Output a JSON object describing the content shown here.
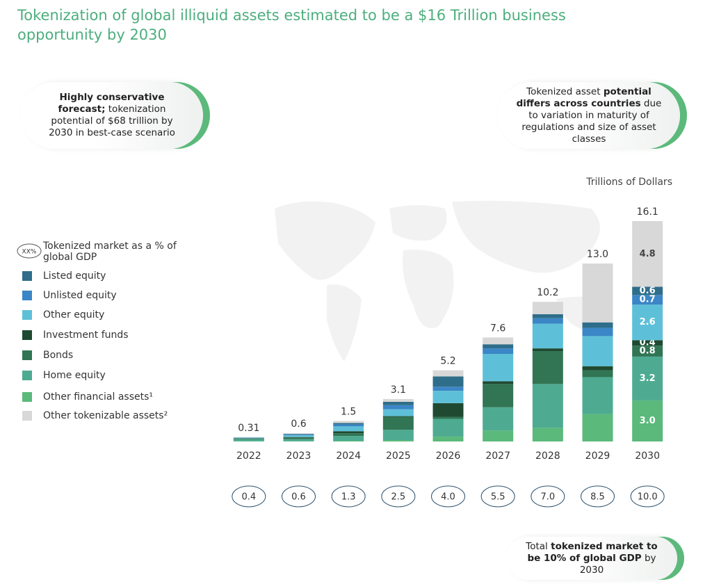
{
  "chart_data": {
    "type": "stacked_bar",
    "title": "Tokenization of global illiquid assets estimated to be a $16 Trillion business opportunity by 2030",
    "unit_label": "Trillions of Dollars",
    "categories": [
      "2022",
      "2023",
      "2024",
      "2025",
      "2026",
      "2027",
      "2028",
      "2029",
      "2030"
    ],
    "series": [
      {
        "name": "Other financial assets¹",
        "color": "#5bb97b",
        "values": [
          0.02,
          0.02,
          0.05,
          0.1,
          0.35,
          0.8,
          1.0,
          2.0,
          3.0
        ],
        "value_labels": [
          null,
          null,
          null,
          null,
          null,
          null,
          null,
          null,
          "3.0"
        ]
      },
      {
        "name": "Home equity",
        "color": "#4eab91",
        "values": [
          0.15,
          0.15,
          0.35,
          0.75,
          1.3,
          1.7,
          3.2,
          2.7,
          3.2
        ],
        "value_labels": [
          null,
          null,
          null,
          null,
          null,
          null,
          null,
          null,
          "3.2"
        ]
      },
      {
        "name": "Bonds",
        "color": "#317554",
        "values": [
          0.05,
          0.1,
          0.2,
          0.95,
          0.15,
          1.7,
          2.4,
          0.5,
          0.8
        ],
        "value_labels": [
          null,
          null,
          null,
          null,
          null,
          null,
          null,
          null,
          "0.8"
        ]
      },
      {
        "name": "Investment funds",
        "color": "#1f4a31",
        "values": [
          0.02,
          0.05,
          0.15,
          0.05,
          1.0,
          0.2,
          0.2,
          0.3,
          0.4
        ],
        "value_labels": [
          null,
          null,
          null,
          null,
          null,
          null,
          null,
          null,
          "0.4"
        ]
      },
      {
        "name": "Other equity",
        "color": "#5ec0d8",
        "values": [
          0.03,
          0.13,
          0.35,
          0.5,
          0.9,
          2.0,
          1.8,
          2.2,
          2.6
        ],
        "value_labels": [
          null,
          null,
          null,
          null,
          null,
          null,
          null,
          null,
          "2.6"
        ]
      },
      {
        "name": "Unlisted equity",
        "color": "#3b86c6",
        "values": [
          0.02,
          0.05,
          0.15,
          0.3,
          0.3,
          0.4,
          0.4,
          0.6,
          0.7
        ],
        "value_labels": [
          null,
          null,
          null,
          null,
          null,
          null,
          null,
          null,
          "0.7"
        ]
      },
      {
        "name": "Listed equity",
        "color": "#2f6e8a",
        "values": [
          0.01,
          0.05,
          0.1,
          0.25,
          0.75,
          0.3,
          0.3,
          0.4,
          0.6
        ],
        "value_labels": [
          null,
          null,
          null,
          null,
          null,
          null,
          null,
          null,
          "0.6"
        ]
      },
      {
        "name": "Other tokenizable assets²",
        "color": "#d8d8d8",
        "values": [
          0.01,
          0.05,
          0.15,
          0.2,
          0.45,
          0.5,
          0.9,
          4.3,
          4.8
        ],
        "value_labels": [
          null,
          null,
          null,
          null,
          null,
          null,
          null,
          null,
          "4.8"
        ]
      }
    ],
    "totals": [
      0.31,
      0.6,
      1.5,
      3.1,
      5.2,
      7.6,
      10.2,
      13,
      16.1
    ],
    "total_labels": [
      "0.31",
      "0.6",
      "1.5",
      "3.1",
      "5.2",
      "7.6",
      "10.2",
      "13.0",
      "16.1"
    ],
    "gdp_share": {
      "icon": "XX%",
      "label": "Tokenized market as a % of global GDP",
      "values": [
        0.4,
        0.6,
        1.3,
        2.5,
        4,
        5.5,
        7,
        8.5,
        10
      ],
      "labels": [
        "0.4",
        "0.6",
        "1.3",
        "2.5",
        "4.0",
        "5.5",
        "7.0",
        "8.5",
        "10.0"
      ]
    },
    "callouts": [
      {
        "parts": [
          {
            "text": "Highly conservative forecast;",
            "bold": true
          },
          {
            "text": " tokenization potential of $68 trillion by 2030 in best-case scenario",
            "bold": false
          }
        ]
      },
      {
        "parts": [
          {
            "text": "Tokenized asset ",
            "bold": false
          },
          {
            "text": "potential differs across countries",
            "bold": true
          },
          {
            "text": " due to variation in maturity of regulations and size of asset classes",
            "bold": false
          }
        ]
      },
      {
        "parts": [
          {
            "text": "Total ",
            "bold": false
          },
          {
            "text": "tokenized market to be 10% of global GDP",
            "bold": true
          },
          {
            "text": " by 2030",
            "bold": false
          }
        ]
      }
    ]
  }
}
